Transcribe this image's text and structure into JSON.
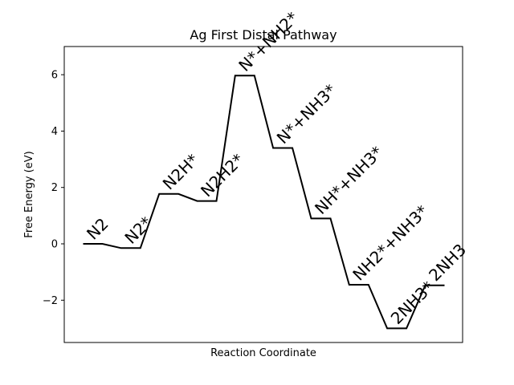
{
  "chart_data": {
    "type": "line",
    "title": "Ag First Distal Pathway",
    "xlabel": "Reaction Coordinate",
    "ylabel": "Free Energy (eV)",
    "ylim": [
      -3.5,
      7.0
    ],
    "yticks": [
      -2,
      0,
      2,
      4,
      6
    ],
    "ytick_labels": [
      "−2",
      "0",
      "2",
      "4",
      "6"
    ],
    "x_ticks_visible": false,
    "grid": false,
    "legend": "none",
    "line_color": "#000000",
    "steps": [
      {
        "label": "N2",
        "energy": 0.0
      },
      {
        "label": "N2*",
        "energy": -0.15
      },
      {
        "label": "N2H*",
        "energy": 1.77
      },
      {
        "label": "N2H2*",
        "energy": 1.52
      },
      {
        "label": "N*+NH2*",
        "energy": 5.97
      },
      {
        "label": "N*+NH3*",
        "energy": 3.4
      },
      {
        "label": "NH*+NH3*",
        "energy": 0.9
      },
      {
        "label": "NH2*+NH3*",
        "energy": -1.45
      },
      {
        "label": "2NH3*",
        "energy": -3.0
      },
      {
        "label": "2NH3",
        "energy": -1.47
      }
    ]
  }
}
